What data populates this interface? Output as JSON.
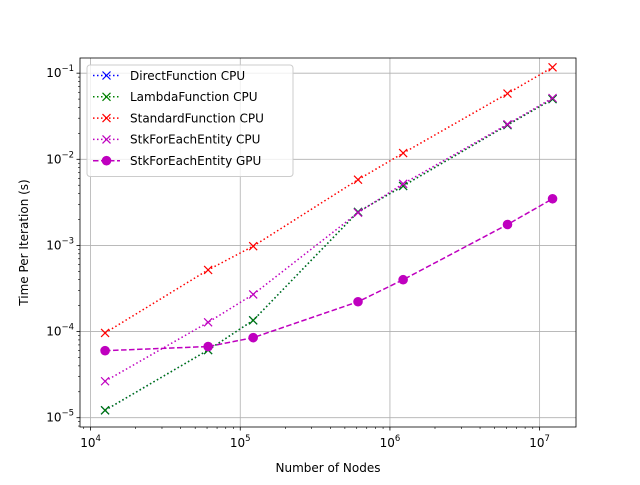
{
  "chart_data": {
    "type": "line",
    "xscale": "log",
    "yscale": "log",
    "xlabel": "Number of Nodes",
    "ylabel": "Time Per Iteration (s)",
    "xlim": [
      8500,
      17500000
    ],
    "ylim": [
      7.8e-06,
      0.15
    ],
    "xticks": [
      {
        "value": 10000,
        "base": "10",
        "exp": "4"
      },
      {
        "value": 100000,
        "base": "10",
        "exp": "5"
      },
      {
        "value": 1000000,
        "base": "10",
        "exp": "6"
      },
      {
        "value": 10000000,
        "base": "10",
        "exp": "7"
      }
    ],
    "yticks": [
      {
        "value": 1e-05,
        "base": "10",
        "exp": "−5"
      },
      {
        "value": 0.0001,
        "base": "10",
        "exp": "−4"
      },
      {
        "value": 0.001,
        "base": "10",
        "exp": "−3"
      },
      {
        "value": 0.01,
        "base": "10",
        "exp": "−2"
      },
      {
        "value": 0.1,
        "base": "10",
        "exp": "−1"
      }
    ],
    "grid": true,
    "legend_position": "upper-left",
    "series": [
      {
        "name": "DirectFunction CPU",
        "color": "#0000ff",
        "linestyle": "dotted",
        "marker": "x",
        "x": [
          12500,
          61000,
          122000,
          612000,
          1225000,
          6100000,
          12200000
        ],
        "y": [
          1.22e-05,
          6.1e-05,
          0.000135,
          0.00245,
          0.0049,
          0.025,
          0.05
        ]
      },
      {
        "name": "LambdaFunction CPU",
        "color": "#008000",
        "linestyle": "dotted",
        "marker": "x",
        "x": [
          12500,
          61000,
          122000,
          612000,
          1225000,
          6100000,
          12200000
        ],
        "y": [
          1.22e-05,
          6.1e-05,
          0.000135,
          0.00245,
          0.0049,
          0.025,
          0.05
        ]
      },
      {
        "name": "StandardFunction CPU",
        "color": "#ff0000",
        "linestyle": "dotted",
        "marker": "x",
        "x": [
          12500,
          61000,
          122000,
          612000,
          1225000,
          6100000,
          12200000
        ],
        "y": [
          9.65e-05,
          0.00052,
          0.00098,
          0.0058,
          0.0118,
          0.058,
          0.117
        ]
      },
      {
        "name": "StkForEachEntity CPU",
        "color": "#bf00bf",
        "linestyle": "dotted",
        "marker": "x",
        "x": [
          12500,
          61000,
          122000,
          612000,
          1225000,
          6100000,
          12200000
        ],
        "y": [
          2.65e-05,
          0.000128,
          0.00027,
          0.0024,
          0.0052,
          0.0255,
          0.0515
        ]
      },
      {
        "name": "StkForEachEntity GPU",
        "color": "#bf00bf",
        "linestyle": "dashed",
        "marker": "o",
        "x": [
          12500,
          61000,
          122000,
          612000,
          1225000,
          6100000,
          12200000
        ],
        "y": [
          6e-05,
          6.7e-05,
          8.5e-05,
          0.000222,
          0.0004,
          0.00175,
          0.00348
        ]
      }
    ]
  }
}
